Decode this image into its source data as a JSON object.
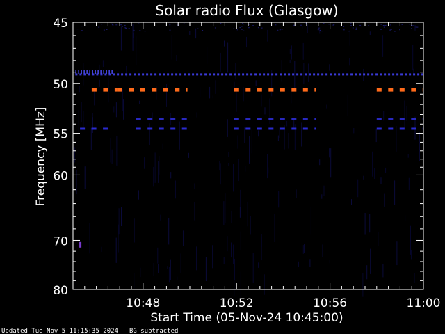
{
  "chart_data": {
    "type": "heatmap",
    "title": "Solar radio Flux (Glasgow)",
    "xlabel": "Start Time (05-Nov-24 10:45:00)",
    "ylabel": "Frequency [MHz]",
    "x_range_minutes": [
      0,
      15
    ],
    "x_ticks": [
      {
        "label": "10:48",
        "minute": 3
      },
      {
        "label": "10:52",
        "minute": 7
      },
      {
        "label": "10:56",
        "minute": 11
      },
      {
        "label": "11:00",
        "minute": 15
      }
    ],
    "y_scale": "reciprocal",
    "y_range_mhz": [
      45,
      80
    ],
    "y_ticks": [
      45,
      50,
      55,
      60,
      70,
      80
    ],
    "background_color": "#000000",
    "axis_color": "#ffffff",
    "emission_bands": [
      {
        "freq_mhz": 50.6,
        "color": "#ff6a1a",
        "segments_minutes": [
          [
            0.8,
            1.9
          ],
          [
            1.9,
            4.9
          ],
          [
            6.9,
            10.4
          ],
          [
            13.0,
            15.0
          ]
        ]
      },
      {
        "freq_mhz": 49.2,
        "color": "#3a3ad8",
        "segments_minutes": [
          [
            0.1,
            1.7
          ],
          [
            1.7,
            15.0
          ]
        ]
      },
      {
        "freq_mhz": 53.5,
        "color": "#2828c0",
        "segments_minutes": [
          [
            2.7,
            4.9
          ],
          [
            6.9,
            10.4
          ],
          [
            13.0,
            15.0
          ]
        ]
      },
      {
        "freq_mhz": 54.5,
        "color": "#2a2ad0",
        "segments_minutes": [
          [
            0.3,
            1.6
          ],
          [
            2.7,
            4.9
          ],
          [
            6.9,
            10.4
          ],
          [
            13.0,
            15.0
          ]
        ]
      }
    ],
    "speck": {
      "minute": 0.3,
      "freq_mhz": 70.8,
      "color": "#7a3ad0"
    }
  },
  "footer": {
    "updated": "Updated Tue Nov  5 11:15:35 2024",
    "note": "BG subtracted"
  }
}
